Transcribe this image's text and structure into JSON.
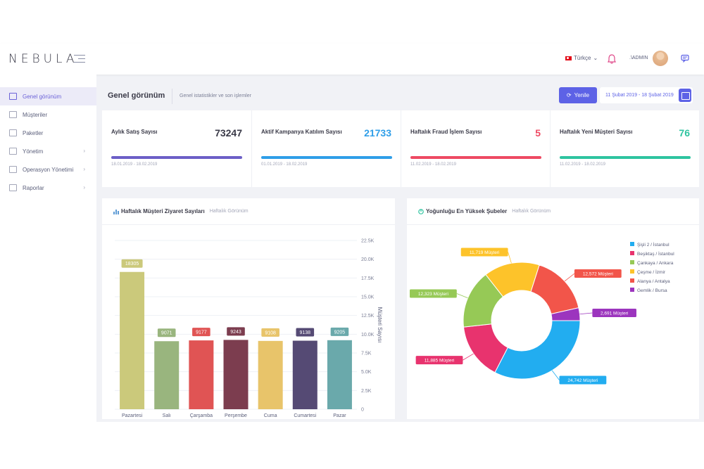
{
  "brand": {
    "name": "NEBULA"
  },
  "topbar": {
    "language": "Türkçe",
    "user": ".\\ADMIN"
  },
  "sidebar": {
    "items": [
      {
        "label": "Genel görünüm",
        "active": true,
        "icon": "monitor-icon"
      },
      {
        "label": "Müşteriler",
        "active": false,
        "icon": "list-icon"
      },
      {
        "label": "Paketler",
        "active": false,
        "icon": "grid-icon"
      },
      {
        "label": "Yönetim",
        "active": false,
        "icon": "layout-icon",
        "has_children": true
      },
      {
        "label": "Operasyon Yönetimi",
        "active": false,
        "icon": "layout-icon",
        "has_children": true
      },
      {
        "label": "Raporlar",
        "active": false,
        "icon": "report-icon",
        "has_children": true
      }
    ]
  },
  "header": {
    "title": "Genel görünüm",
    "subtitle": "Genel istatistikler ve son işlemler",
    "refresh_label": "Yenile",
    "date_range": "11 Şubat 2019 - 18 Şubat 2019"
  },
  "stats": [
    {
      "label": "Aylık Satış Sayısı",
      "value": "73247",
      "date": "18.01.2019 - 18.02.2019",
      "color": "#6c5fc7",
      "value_color": "#3a3a48"
    },
    {
      "label": "Aktif Kampanya Katılım Sayısı",
      "value": "21733",
      "date": "01.01.2019 - 18.02.2019",
      "color": "#2f9ee8",
      "value_color": "#2f9ee8"
    },
    {
      "label": "Haftalık Fraud İşlem Sayısı",
      "value": "5",
      "date": "11.02.2019 - 18.02.2019",
      "color": "#ee4a63",
      "value_color": "#ee4a63"
    },
    {
      "label": "Haftalık Yeni Müşteri Sayısı",
      "value": "76",
      "date": "11.02.2019 - 18.02.2019",
      "color": "#2ec4a0",
      "value_color": "#2ec4a0"
    }
  ],
  "panels": {
    "visits": {
      "title": "Haftalık Müşteri Ziyaret Sayıları",
      "sub": "Haftalık Görünüm"
    },
    "branches": {
      "title": "Yoğunluğu En Yüksek Şubeler",
      "sub": "Haftalık Görünüm"
    }
  },
  "chart_data": [
    {
      "type": "bar",
      "categories": [
        "Pazartesi",
        "Salı",
        "Çarşamba",
        "Perşembe",
        "Cuma",
        "Cumartesi",
        "Pazar"
      ],
      "values": [
        18305,
        9071,
        9177,
        9243,
        9108,
        9138,
        9205
      ],
      "colors": [
        "#cbc97b",
        "#99b57e",
        "#e05454",
        "#7c3d4f",
        "#e8c46a",
        "#554a74",
        "#6aa9ab"
      ],
      "ylabel": "Müşteri Sayısı",
      "ylim": [
        0,
        22500
      ],
      "yticks": [
        "0",
        "2.5K",
        "5.0K",
        "7.5K",
        "10.0K",
        "12.5K",
        "15.0K",
        "17.5K",
        "20.0K",
        "22.5K"
      ],
      "grid": true
    },
    {
      "type": "pie",
      "donut": true,
      "legend_position": "top-right",
      "slices": [
        {
          "name": "Şişli 2 / İstanbul",
          "value": 24742,
          "label": "24,742 Müşteri",
          "color": "#22adf0"
        },
        {
          "name": "Beşiktaş / İstanbul",
          "value": 11885,
          "label": "11,885 Müşteri",
          "color": "#e8336e"
        },
        {
          "name": "Çankaya / Ankara",
          "value": 12323,
          "label": "12,323 Müşteri",
          "color": "#96c956"
        },
        {
          "name": "Çeşme / İzmir",
          "value": 11719,
          "label": "11,719 Müşteri",
          "color": "#fdc32a"
        },
        {
          "name": "Alanya / Antalya",
          "value": 12572,
          "label": "12,572 Müşteri",
          "color": "#f2554a"
        },
        {
          "name": "Gemlik / Bursa",
          "value": 2691,
          "label": "2,691 Müşteri",
          "color": "#9c35be"
        }
      ]
    }
  ]
}
